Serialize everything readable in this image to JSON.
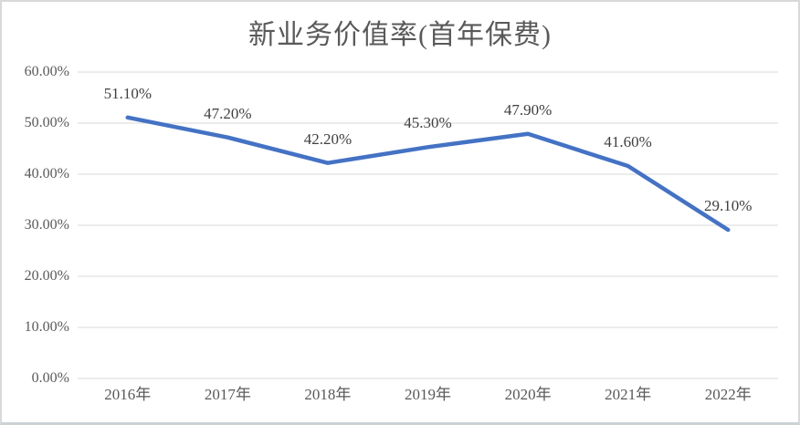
{
  "chart_data": {
    "type": "line",
    "title": "新业务价值率(首年保费)",
    "categories": [
      "2016年",
      "2017年",
      "2018年",
      "2019年",
      "2020年",
      "2021年",
      "2022年"
    ],
    "series": [
      {
        "name": "新业务价值率(首年保费)",
        "values": [
          51.1,
          47.2,
          42.2,
          45.3,
          47.9,
          41.6,
          29.1
        ],
        "point_labels": [
          "51.10%",
          "47.20%",
          "42.20%",
          "45.30%",
          "47.90%",
          "41.60%",
          "29.10%"
        ],
        "color": "#4472C4"
      }
    ],
    "xlabel": "",
    "ylabel": "",
    "ylim": [
      0,
      60
    ],
    "y_tick_step": 10,
    "y_tick_labels": [
      "0.00%",
      "10.00%",
      "20.00%",
      "30.00%",
      "40.00%",
      "50.00%",
      "60.00%"
    ],
    "grid": true,
    "legend_position": "none",
    "colors": {
      "line": "#4472C4",
      "grid": "#D9D9D9",
      "title_text": "#595959",
      "axis_text": "#595959",
      "data_label_text": "#3F3F3F",
      "background": "#FFFFFF",
      "frame_border": "#D9D9D9"
    }
  }
}
